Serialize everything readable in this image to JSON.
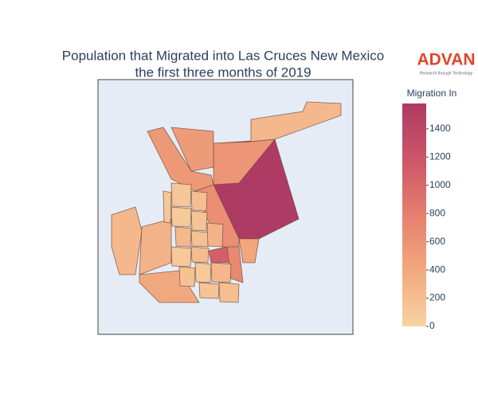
{
  "chart_data": {
    "type": "choropleth",
    "title": [
      "Population that Migrated into Las Cruces New Mexico",
      "the first three months of 2019"
    ],
    "logo": {
      "name": "ADVAN",
      "tagline": "Research through Technology"
    },
    "colorbar_title": "Migration In",
    "colorscale": [
      "#f7d3a3",
      "#f2a97f",
      "#e57f6e",
      "#cc5669",
      "#ae3b63"
    ],
    "clim": [
      0,
      1580
    ],
    "cticks": [
      0,
      200,
      400,
      600,
      800,
      1000,
      1200,
      1400
    ],
    "values": [
      1580,
      250,
      580,
      550,
      530,
      650,
      250,
      300,
      400,
      1100,
      700,
      420,
      120,
      200,
      90,
      150,
      250,
      180,
      300,
      100,
      220,
      160,
      80,
      260,
      140,
      190,
      110
    ]
  }
}
